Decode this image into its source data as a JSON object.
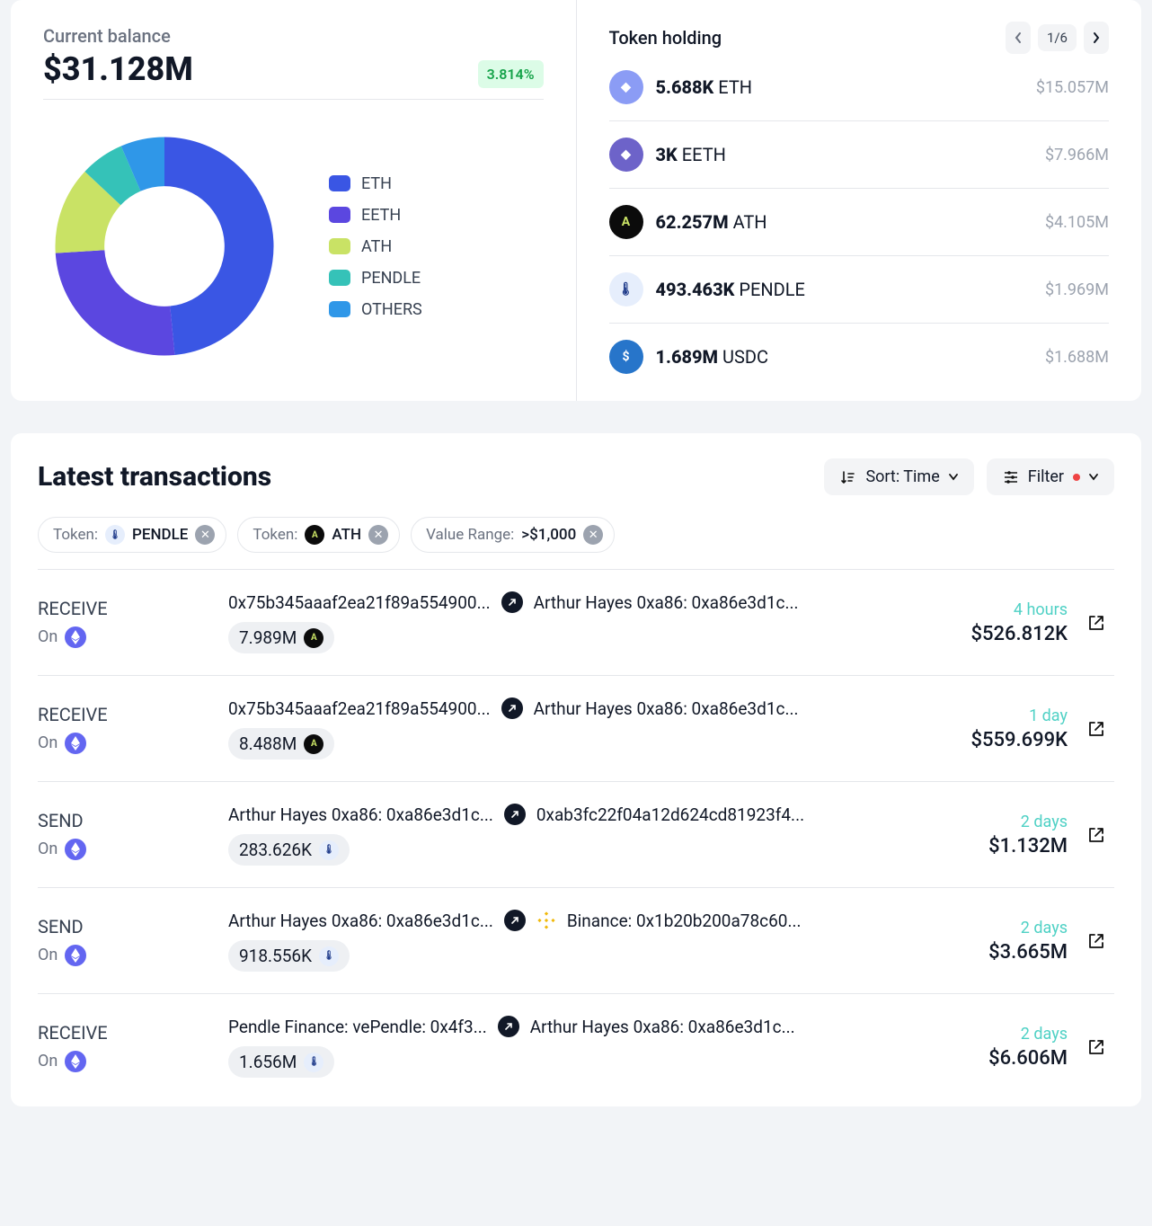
{
  "balance": {
    "title": "Current balance",
    "value": "$31.128M",
    "pct": "3.814%",
    "donut": {
      "slices": [
        {
          "label": "ETH",
          "value": 48.5,
          "color": "#3a56e4"
        },
        {
          "label": "EETH",
          "value": 25.5,
          "color": "#5b47e0"
        },
        {
          "label": "ATH",
          "value": 13.0,
          "color": "#c9e265"
        },
        {
          "label": "PENDLE",
          "value": 6.5,
          "color": "#35c2b8"
        },
        {
          "label": "OTHERS",
          "value": 6.5,
          "color": "#2f97e8"
        }
      ],
      "inner_radius_pct": 55,
      "background": "#ffffff"
    }
  },
  "holdings": {
    "title": "Token holding",
    "page": "1/6",
    "items": [
      {
        "amount": "5.688K",
        "symbol": "ETH",
        "usd": "$15.057M",
        "icon_bg": "#8b9cf5",
        "icon_text": "◆"
      },
      {
        "amount": "3K",
        "symbol": "EETH",
        "usd": "$7.966M",
        "icon_bg": "#6d63c9",
        "icon_text": "◆"
      },
      {
        "amount": "62.257M",
        "symbol": "ATH",
        "usd": "$4.105M",
        "icon_bg": "#0b0b0b",
        "icon_text": "A"
      },
      {
        "amount": "493.463K",
        "symbol": "PENDLE",
        "usd": "$1.969M",
        "icon_bg": "#e6eefc",
        "icon_text": "🌡"
      },
      {
        "amount": "1.689M",
        "symbol": "USDC",
        "usd": "$1.688M",
        "icon_bg": "#2775ca",
        "icon_text": "$"
      }
    ]
  },
  "tx": {
    "title": "Latest transactions",
    "sort_label": "Sort: Time",
    "filter_label": "Filter",
    "chips": [
      {
        "label": "Token:",
        "value": "PENDLE",
        "icon_bg": "#e6eefc",
        "icon_text": "🌡"
      },
      {
        "label": "Token:",
        "value": "ATH",
        "icon_bg": "#0b0b0b",
        "icon_text": "A"
      },
      {
        "label": "Value Range:",
        "value": ">$1,000"
      }
    ],
    "rows": [
      {
        "type": "RECEIVE",
        "on_label": "On",
        "from": "0x75b345aaaf2ea21f89a554900...",
        "to": "Arthur Hayes 0xa86: 0xa86e3d1c...",
        "to_icon": null,
        "amount": "7.989M",
        "amount_icon_bg": "#0b0b0b",
        "amount_icon_color": "#c9e265",
        "amount_icon_text": "A",
        "time": "4 hours",
        "value": "$526.812K"
      },
      {
        "type": "RECEIVE",
        "on_label": "On",
        "from": "0x75b345aaaf2ea21f89a554900...",
        "to": "Arthur Hayes 0xa86: 0xa86e3d1c...",
        "to_icon": null,
        "amount": "8.488M",
        "amount_icon_bg": "#0b0b0b",
        "amount_icon_color": "#c9e265",
        "amount_icon_text": "A",
        "time": "1 day",
        "value": "$559.699K"
      },
      {
        "type": "SEND",
        "on_label": "On",
        "from": "Arthur Hayes 0xa86: 0xa86e3d1c...",
        "to": "0xab3fc22f04a12d624cd81923f4...",
        "to_icon": null,
        "amount": "283.626K",
        "amount_icon_bg": "#e6eefc",
        "amount_icon_color": "#1e3a8a",
        "amount_icon_text": "🌡",
        "time": "2 days",
        "value": "$1.132M"
      },
      {
        "type": "SEND",
        "on_label": "On",
        "from": "Arthur Hayes 0xa86: 0xa86e3d1c...",
        "to": "Binance: 0x1b20b200a78c60...",
        "to_icon": "binance",
        "amount": "918.556K",
        "amount_icon_bg": "#e6eefc",
        "amount_icon_color": "#1e3a8a",
        "amount_icon_text": "🌡",
        "time": "2 days",
        "value": "$3.665M"
      },
      {
        "type": "RECEIVE",
        "on_label": "On",
        "from": "Pendle Finance: vePendle: 0x4f3...",
        "to": "Arthur Hayes 0xa86: 0xa86e3d1c...",
        "to_icon": null,
        "amount": "1.656M",
        "amount_icon_bg": "#e6eefc",
        "amount_icon_color": "#1e3a8a",
        "amount_icon_text": "🌡",
        "time": "2 days",
        "value": "$6.606M"
      }
    ]
  }
}
